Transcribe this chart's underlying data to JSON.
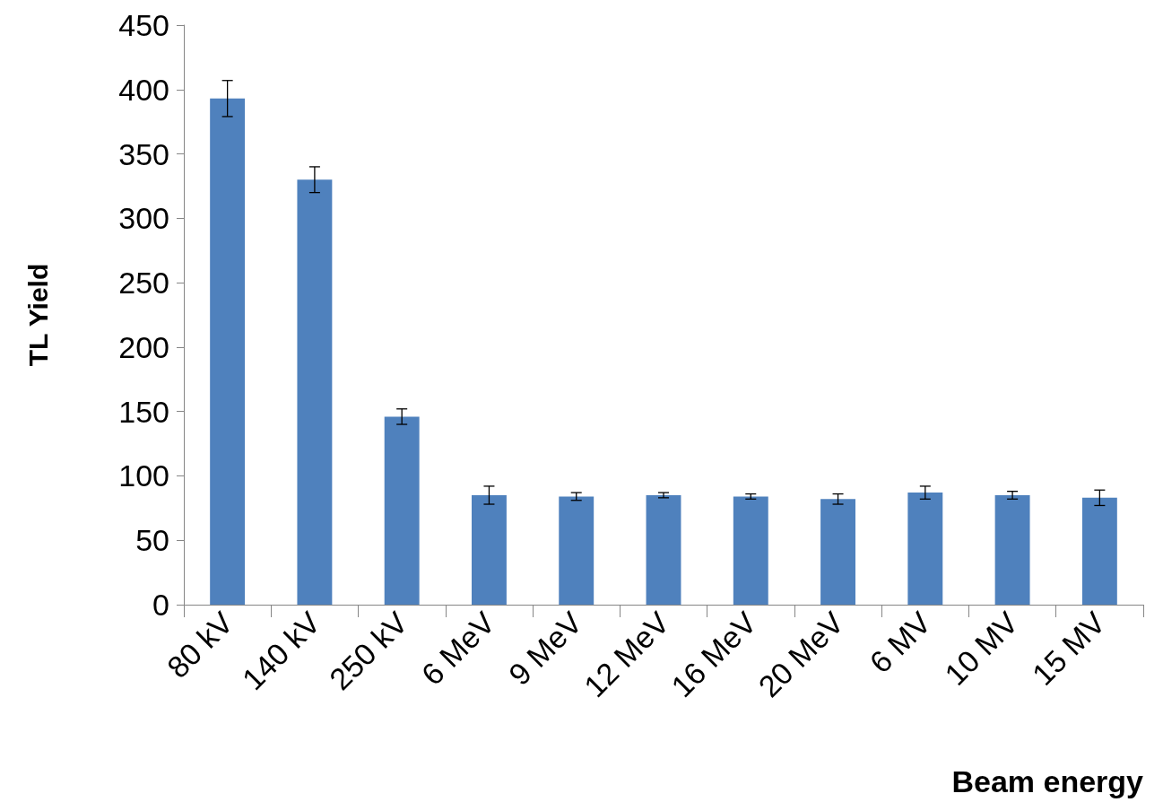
{
  "chart_data": {
    "type": "bar",
    "xlabel": "Beam energy",
    "ylabel": "TL Yield",
    "categories": [
      "80 kV",
      "140 kV",
      "250 kV",
      "6 MeV",
      "9 MeV",
      "12 MeV",
      "16 MeV",
      "20 MeV",
      "6 MV",
      "10 MV",
      "15 MV"
    ],
    "values": [
      393,
      330,
      146,
      85,
      84,
      85,
      84,
      82,
      87,
      85,
      83
    ],
    "errors": [
      14,
      10,
      6,
      7,
      3,
      2,
      2,
      4,
      5,
      3,
      6
    ],
    "color": "#4f81bd",
    "ylim": [
      0,
      450
    ],
    "yticks": [
      0,
      50,
      100,
      150,
      200,
      250,
      300,
      350,
      400,
      450
    ],
    "grid": false
  }
}
